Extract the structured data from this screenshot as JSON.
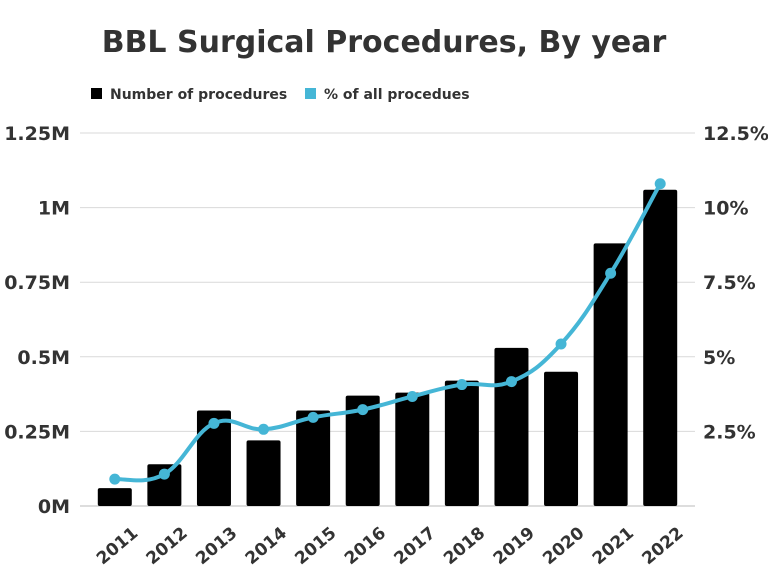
{
  "chart_data": {
    "type": "bar",
    "title": "BBL Surgical Procedures, By year",
    "categories": [
      "2011",
      "2012",
      "2013",
      "2014",
      "2015",
      "2016",
      "2017",
      "2018",
      "2019",
      "2020",
      "2021",
      "2022"
    ],
    "series": [
      {
        "name": "Number of procedures",
        "type": "bar",
        "axis": "left",
        "color": "#000000",
        "values": [
          60000,
          140000,
          320000,
          220000,
          320000,
          370000,
          380000,
          420000,
          530000,
          450000,
          880000,
          1060000
        ]
      },
      {
        "name": "% of all procedues",
        "type": "line",
        "axis": "right",
        "color": "#45b6d6",
        "values": [
          0.9,
          1.07,
          2.77,
          2.57,
          2.97,
          3.23,
          3.67,
          4.07,
          4.17,
          5.43,
          7.8,
          10.8
        ]
      }
    ],
    "left_axis": {
      "ylim": [
        0,
        1250000
      ],
      "ticks": [
        0,
        250000,
        500000,
        750000,
        1000000,
        1250000
      ],
      "tick_labels": [
        "0M",
        "0.25M",
        "0.5M",
        "0.75M",
        "1M",
        "1.25M"
      ]
    },
    "right_axis": {
      "ylim": [
        0,
        12.5
      ],
      "ticks": [
        2.5,
        5,
        7.5,
        10,
        12.5
      ],
      "tick_labels": [
        "2.5%",
        "5%",
        "7.5%",
        "10%",
        "12.5%"
      ]
    },
    "grid": true,
    "legend": "top"
  }
}
